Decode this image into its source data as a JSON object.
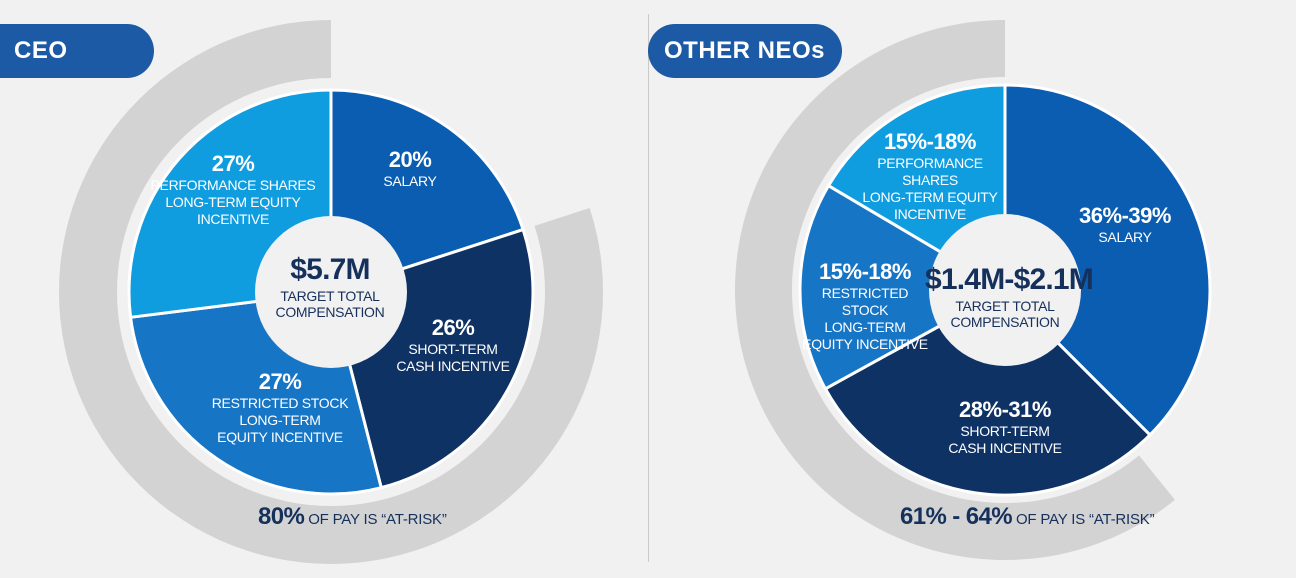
{
  "colors": {
    "salary": "#0a5db0",
    "sti": "#0f3264",
    "rsu": "#1775c6",
    "psu": "#0f9de0",
    "at_risk_band": "#d3d3d3",
    "center_circle": "#f1f1f1",
    "text_dark": "#16305c",
    "tag_bg": "#1c5aa6"
  },
  "ceo": {
    "tag": "CEO",
    "center_value": "$5.7M",
    "center_text": [
      "TARGET TOTAL",
      "COMPENSATION"
    ],
    "at_risk_value": "80%",
    "at_risk_text": "OF PAY IS “AT-RISK”",
    "segments": [
      {
        "pct": "20%",
        "lines": [
          "SALARY"
        ]
      },
      {
        "pct": "26%",
        "lines": [
          "SHORT-TERM",
          "CASH INCENTIVE"
        ]
      },
      {
        "pct": "27%",
        "lines": [
          "RESTRICTED STOCK",
          "LONG-TERM",
          "EQUITY INCENTIVE"
        ]
      },
      {
        "pct": "27%",
        "lines": [
          "PERFORMANCE SHARES",
          "LONG-TERM EQUITY",
          "INCENTIVE"
        ]
      }
    ]
  },
  "neo": {
    "tag": "OTHER NEOs",
    "center_value": "$1.4M-$2.1M",
    "center_text": [
      "TARGET TOTAL",
      "COMPENSATION"
    ],
    "at_risk_value": "61% - 64%",
    "at_risk_text": "OF PAY IS “AT-RISK”",
    "segments": [
      {
        "pct": "36%-39%",
        "lines": [
          "SALARY"
        ]
      },
      {
        "pct": "28%-31%",
        "lines": [
          "SHORT-TERM",
          "CASH INCENTIVE"
        ]
      },
      {
        "pct": "15%-18%",
        "lines": [
          "RESTRICTED STOCK",
          "LONG-TERM",
          "EQUITY INCENTIVE"
        ]
      },
      {
        "pct": "15%-18%",
        "lines": [
          "PERFORMANCE SHARES",
          "LONG-TERM EQUITY",
          "INCENTIVE"
        ]
      }
    ]
  },
  "chart_data": [
    {
      "type": "pie",
      "categories": [
        "Salary",
        "Short-Term Cash Incentive",
        "Restricted Stock Long-Term Equity Incentive",
        "Performance Shares Long-Term Equity Incentive"
      ],
      "values": [
        20,
        26,
        27,
        27
      ],
      "center_label": "$5.7M",
      "at_risk_percent": 80,
      "legend": "none"
    },
    {
      "type": "pie",
      "categories": [
        "Salary",
        "Short-Term Cash Incentive",
        "Restricted Stock Long-Term Equity Incentive",
        "Performance Shares Long-Term Equity Incentive"
      ],
      "values": [
        37.5,
        29.5,
        16.5,
        16.5
      ],
      "ranges": [
        [
          36,
          39
        ],
        [
          28,
          31
        ],
        [
          15,
          18
        ],
        [
          15,
          18
        ]
      ],
      "center_label": "$1.4M-$2.1M",
      "at_risk_percent": [
        61,
        64
      ],
      "legend": "none"
    }
  ]
}
